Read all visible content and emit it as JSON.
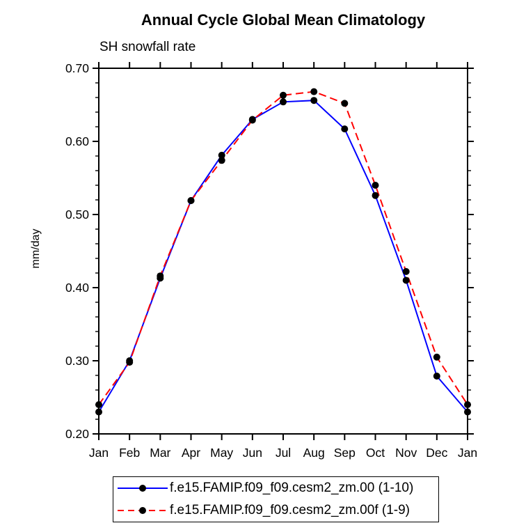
{
  "chart_data": {
    "type": "line",
    "title": "Annual Cycle Global Mean Climatology",
    "subtitle": "SH snowfall rate",
    "ylabel": "mm/day",
    "categories": [
      "Jan",
      "Feb",
      "Mar",
      "Apr",
      "May",
      "Jun",
      "Jul",
      "Aug",
      "Sep",
      "Oct",
      "Nov",
      "Dec",
      "Jan"
    ],
    "ylim": [
      0.2,
      0.7
    ],
    "yticks": [
      0.2,
      0.3,
      0.4,
      0.5,
      0.6,
      0.7
    ],
    "ytick_interval": 0.1,
    "yminor_interval": 0.02,
    "grid": false,
    "legend_position": "bottom",
    "axis_color": "#000000",
    "marker_color": "#000000",
    "series": [
      {
        "name": "f.e15.FAMIP.f09_f09.cesm2_zm.00 (1-10)",
        "color": "#0000ff",
        "style": "solid",
        "values": [
          0.23,
          0.3,
          0.413,
          0.519,
          0.581,
          0.63,
          0.654,
          0.656,
          0.617,
          0.526,
          0.41,
          0.279,
          0.23
        ]
      },
      {
        "name": "f.e15.FAMIP.f09_f09.cesm2_zm.00f (1-9)",
        "color": "#ff0000",
        "style": "dashed",
        "values": [
          0.24,
          0.298,
          0.416,
          0.519,
          0.574,
          0.629,
          0.663,
          0.668,
          0.652,
          0.54,
          0.422,
          0.305,
          0.24
        ]
      }
    ]
  }
}
